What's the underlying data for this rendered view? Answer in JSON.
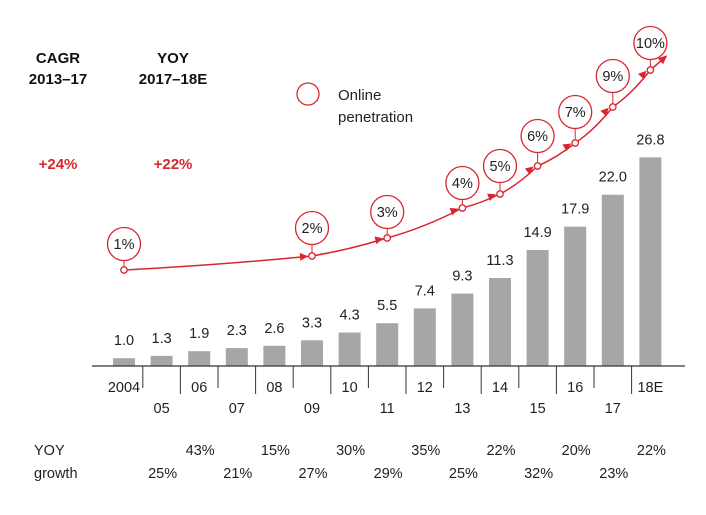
{
  "header": {
    "cagr_title_line1": "CAGR",
    "cagr_title_line2": "2013–17",
    "yoy_title_line1": "YOY",
    "yoy_title_line2": "2017–18E",
    "cagr_value": "+24%",
    "yoy_value": "+22%"
  },
  "legend": {
    "label_line1": "Online",
    "label_line2": "penetration"
  },
  "yoy_row": {
    "label_line1": "YOY",
    "label_line2": "growth"
  },
  "colors": {
    "bar": "#a6a6a6",
    "accent": "#d9262e",
    "axis": "#333333"
  },
  "chart_data": {
    "type": "bar",
    "categories": [
      "2004",
      "05",
      "06",
      "07",
      "08",
      "09",
      "10",
      "11",
      "12",
      "13",
      "14",
      "15",
      "16",
      "17",
      "18E"
    ],
    "values": [
      1.0,
      1.3,
      1.9,
      2.3,
      2.6,
      3.3,
      4.3,
      5.5,
      7.4,
      9.3,
      11.3,
      14.9,
      17.9,
      22.0,
      26.8
    ],
    "value_labels": [
      "1.0",
      "1.3",
      "1.9",
      "2.3",
      "2.6",
      "3.3",
      "4.3",
      "5.5",
      "7.4",
      "9.3",
      "11.3",
      "14.9",
      "17.9",
      "22.0",
      "26.8"
    ],
    "ylim": [
      0,
      28
    ],
    "overlay_line": {
      "name": "Online penetration",
      "points": [
        {
          "category": "2004",
          "label": "1%"
        },
        {
          "category": "09",
          "label": "2%"
        },
        {
          "category": "11",
          "label": "3%"
        },
        {
          "category": "13",
          "label": "4%"
        },
        {
          "category": "14",
          "label": "5%"
        },
        {
          "category": "15",
          "label": "6%"
        },
        {
          "category": "16",
          "label": "7%"
        },
        {
          "category": "17",
          "label": "9%"
        },
        {
          "category": "18E",
          "label": "10%"
        }
      ]
    },
    "yoy_growth": [
      {
        "category": "05",
        "label": "25%"
      },
      {
        "category": "06",
        "label": "43%"
      },
      {
        "category": "07",
        "label": "21%"
      },
      {
        "category": "08",
        "label": "15%"
      },
      {
        "category": "09",
        "label": "27%"
      },
      {
        "category": "10",
        "label": "30%"
      },
      {
        "category": "11",
        "label": "29%"
      },
      {
        "category": "12",
        "label": "35%"
      },
      {
        "category": "13",
        "label": "25%"
      },
      {
        "category": "14",
        "label": "22%"
      },
      {
        "category": "15",
        "label": "32%"
      },
      {
        "category": "16",
        "label": "20%"
      },
      {
        "category": "17",
        "label": "23%"
      },
      {
        "category": "18E",
        "label": "22%"
      }
    ],
    "grid": false
  }
}
